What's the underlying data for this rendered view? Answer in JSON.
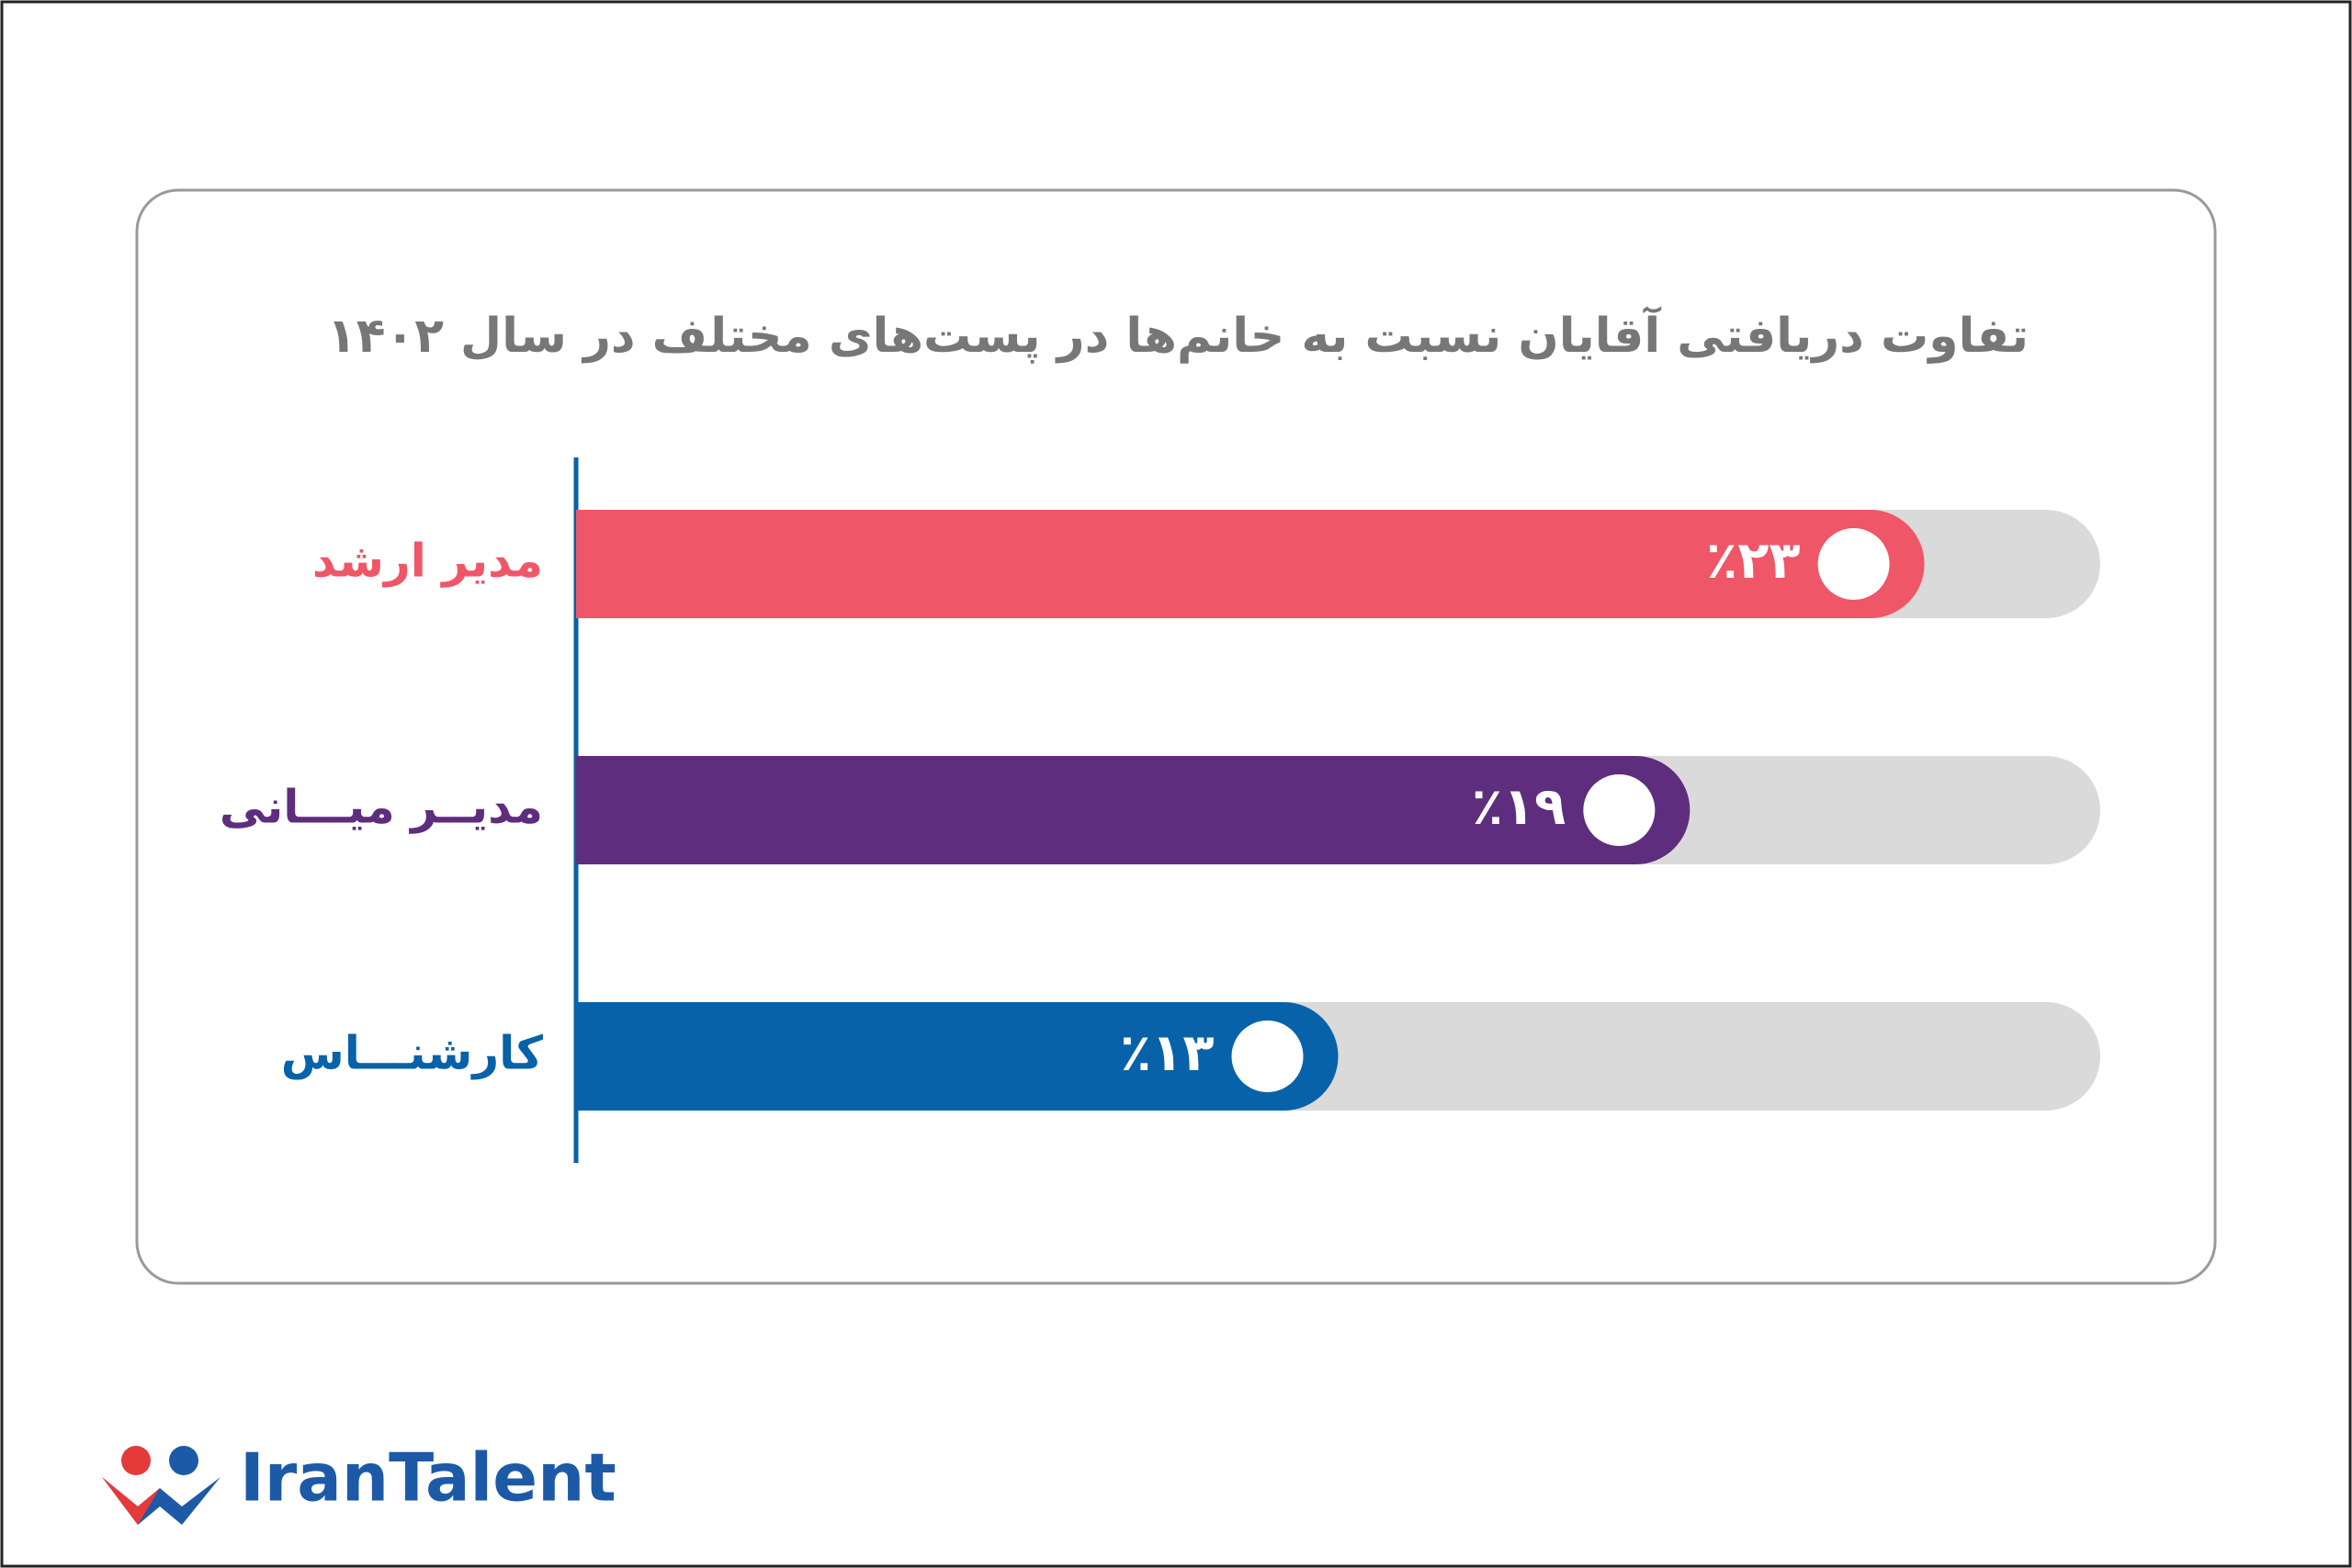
{
  "chart_data": {
    "type": "bar",
    "orientation": "horizontal",
    "title": "تفاوت دریافتی آقایان نسبت به خانم‌ها در پست‌های مختلف در سال ۱۴۰۲",
    "categories": [
      "مدیر ارشد",
      "مدیــر میـــانی",
      "کارشنـــاس"
    ],
    "values": [
      23,
      19,
      13
    ],
    "value_labels": [
      "٪۲۳",
      "٪۱۹",
      "٪۱۳"
    ],
    "colors": [
      "#ef5668",
      "#5e2d7d",
      "#0762a9"
    ],
    "track_color": "#dadada",
    "xlim": [
      0,
      26
    ]
  },
  "logo": {
    "text": "IranTalent"
  }
}
